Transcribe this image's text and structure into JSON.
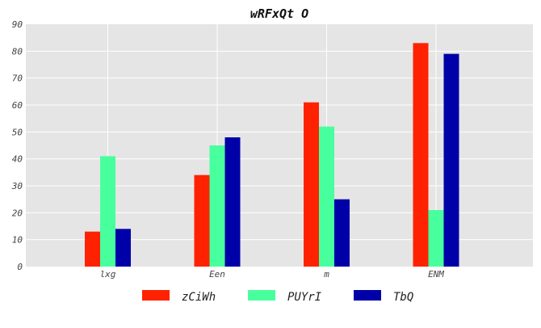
{
  "chart_data": {
    "type": "bar",
    "title": "wRFxQt O",
    "xlabel": "",
    "ylabel": "",
    "categories": [
      "lxg",
      "Een",
      "m",
      "ENM"
    ],
    "series": [
      {
        "name": "zCiWh",
        "color": "#ff2200",
        "values": [
          13,
          34,
          61,
          83
        ]
      },
      {
        "name": "PUYrI",
        "color": "#48ff9e",
        "values": [
          41,
          45,
          52,
          21
        ]
      },
      {
        "name": "TbQ",
        "color": "#0000a8",
        "values": [
          14,
          48,
          25,
          79
        ]
      }
    ],
    "ylim": [
      0,
      90
    ],
    "yticks": [
      0,
      10,
      20,
      30,
      40,
      50,
      60,
      70,
      80,
      90
    ],
    "grid": true,
    "legend_position": "bottom-center",
    "background_color": "#e5e5e5",
    "grid_color": "#ffffff"
  }
}
